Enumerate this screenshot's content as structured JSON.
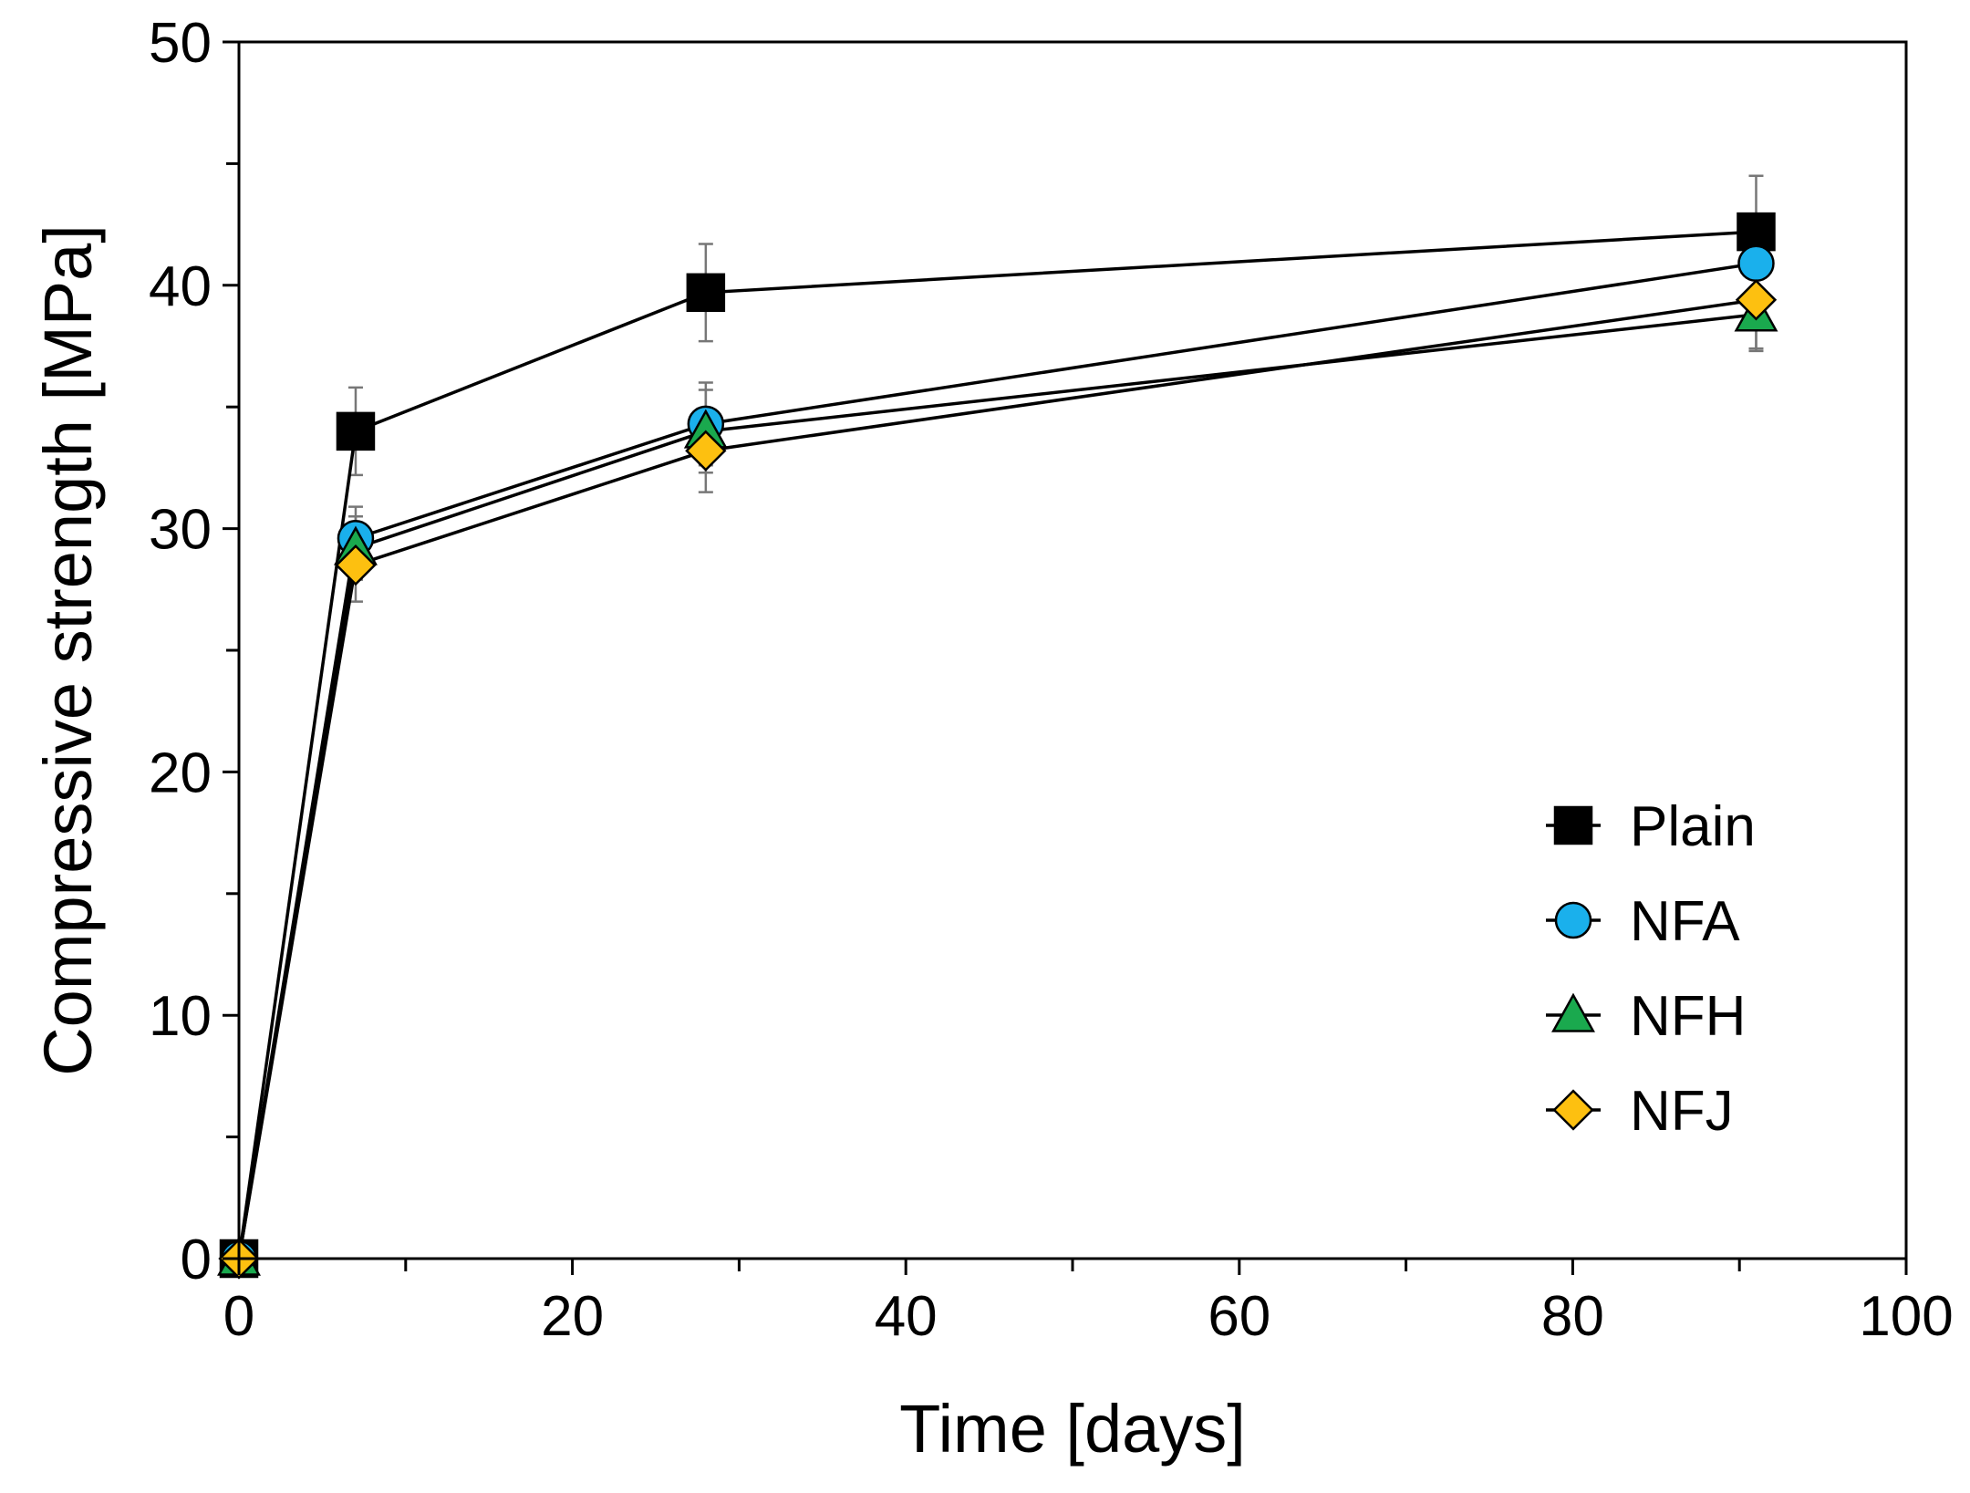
{
  "chart_data": {
    "type": "line",
    "title": "",
    "xlabel": "Time [days]",
    "ylabel": "Compressive strength [MPa]",
    "xlim": [
      0,
      100
    ],
    "ylim": [
      0,
      50
    ],
    "xticks": [
      0,
      20,
      40,
      60,
      80,
      100
    ],
    "xticks_minor": [
      10,
      30,
      50,
      70,
      90
    ],
    "yticks": [
      0,
      10,
      20,
      30,
      40,
      50
    ],
    "yticks_minor": [
      5,
      15,
      25,
      35,
      45
    ],
    "grid": false,
    "legend_position": "bottom-right",
    "series": [
      {
        "name": "Plain",
        "marker": "square",
        "color": "#000000",
        "x": [
          0,
          7,
          28,
          91
        ],
        "y": [
          0,
          34.0,
          39.7,
          42.2
        ],
        "err": [
          0,
          1.8,
          2.0,
          2.3
        ]
      },
      {
        "name": "NFA",
        "marker": "circle",
        "color": "#1ab0ec",
        "x": [
          0,
          7,
          28,
          91
        ],
        "y": [
          0,
          29.6,
          34.3,
          40.9
        ],
        "err": [
          0,
          1.3,
          1.7,
          1.5
        ]
      },
      {
        "name": "NFH",
        "marker": "triangle",
        "color": "#1aa94e",
        "x": [
          0,
          7,
          28,
          91
        ],
        "y": [
          0,
          29.2,
          34.0,
          38.8
        ],
        "err": [
          0,
          1.3,
          1.7,
          1.5
        ]
      },
      {
        "name": "NFJ",
        "marker": "diamond",
        "color": "#fdc010",
        "x": [
          0,
          7,
          28,
          91
        ],
        "y": [
          0,
          28.5,
          33.2,
          39.4
        ],
        "err": [
          0,
          1.5,
          1.7,
          2.0
        ]
      }
    ]
  }
}
